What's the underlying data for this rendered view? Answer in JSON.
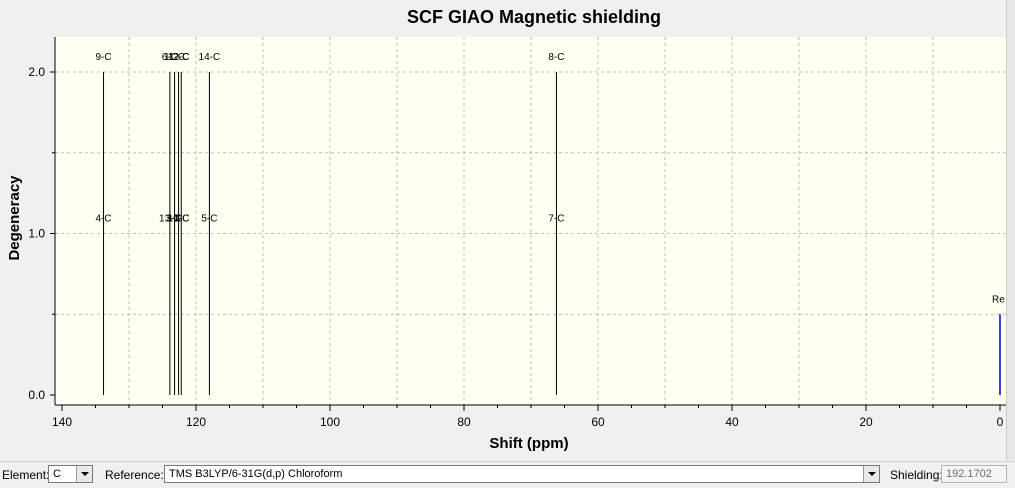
{
  "chart_data": {
    "type": "bar",
    "title": "SCF GIAO Magnetic shielding",
    "xlabel": "Shift (ppm)",
    "ylabel": "Degeneracy",
    "xlim": [
      140,
      0
    ],
    "ylim": [
      0,
      2.2
    ],
    "x_ticks": [
      "140",
      "120",
      "100",
      "80",
      "60",
      "40",
      "20",
      "0"
    ],
    "y_ticks": [
      "0.0",
      "1.0",
      "2.0"
    ],
    "grid": true,
    "peaks": [
      {
        "x": 133.8,
        "y": 2,
        "labels": [
          "9-C",
          "4-C"
        ]
      },
      {
        "x": 123.9,
        "y": 2,
        "labels": [
          "6-C",
          "13-C"
        ]
      },
      {
        "x": 123.2,
        "y": 2,
        "labels": [
          "11-C",
          "3-C"
        ]
      },
      {
        "x": 122.6,
        "y": 2,
        "labels": [
          "12-C",
          "10-C"
        ]
      },
      {
        "x": 122.2,
        "y": 2,
        "labels": [
          "2-C",
          "1-C"
        ]
      },
      {
        "x": 118.0,
        "y": 2,
        "labels": [
          "14-C",
          "5-C"
        ]
      },
      {
        "x": 66.2,
        "y": 2,
        "labels": [
          "8-C",
          "7-C"
        ]
      }
    ],
    "reference_peak": {
      "x": 0,
      "y": 0.5,
      "label": "Re",
      "color": "#0000cc"
    }
  },
  "controls": {
    "element_label": "Element:",
    "element_value": "C",
    "reference_label": "Reference:",
    "reference_value": "TMS B3LYP/6-31G(d,p) Chloroform",
    "shielding_label": "Shielding:",
    "shielding_value": "192.1702"
  }
}
